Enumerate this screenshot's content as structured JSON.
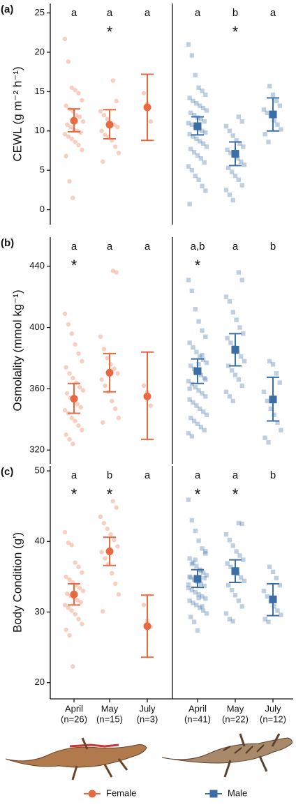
{
  "facets": [
    {
      "name": "Female",
      "color": "#e8693f",
      "marker": "circle",
      "categories": [
        "April",
        "May",
        "July"
      ],
      "sample_sizes": [
        "(n=26)",
        "(n=15)",
        "(n=3)"
      ]
    },
    {
      "name": "Male",
      "color": "#3a6ea5",
      "marker": "square",
      "categories": [
        "April",
        "May",
        "July"
      ],
      "sample_sizes": [
        "(n=41)",
        "(n=22)",
        "(n=12)"
      ]
    }
  ],
  "chart_data": [
    {
      "type": "dotplot",
      "tag": "(a)",
      "ylabel": "CEWL (g m⁻² h⁻¹)",
      "ylim": [
        -1.9,
        26.2
      ],
      "yticks": [
        0,
        5,
        10,
        15,
        20,
        25
      ],
      "series": [
        {
          "means": [
            11.3,
            10.8,
            13.0
          ],
          "lower": [
            9.9,
            9.0,
            8.8
          ],
          "upper": [
            12.8,
            12.7,
            17.2
          ],
          "letters": [
            "a",
            "a",
            "a"
          ],
          "stars": [
            null,
            "*",
            null
          ],
          "points": [
            [
              21.7,
              18.8,
              15.5,
              15.2,
              14.8,
              13.9,
              13.2,
              12.8,
              12.5,
              12.0,
              11.8,
              11.2,
              10.8,
              10.5,
              10.2,
              10.0,
              9.8,
              9.6,
              9.3,
              9.0,
              8.6,
              8.2,
              7.6,
              6.8,
              3.6,
              1.5
            ],
            [
              16.4,
              13.8,
              12.5,
              12.0,
              11.5,
              11.0,
              10.8,
              10.5,
              10.0,
              9.5,
              9.2,
              8.8,
              8.0,
              7.2,
              6.1
            ],
            [
              14.8,
              13.5,
              11.2
            ]
          ]
        },
        {
          "means": [
            10.6,
            7.1,
            12.1
          ],
          "lower": [
            9.5,
            5.6,
            10.0
          ],
          "upper": [
            11.8,
            8.6,
            14.2
          ],
          "letters": [
            "a",
            "b",
            "a"
          ],
          "stars": [
            null,
            "*",
            null
          ],
          "points": [
            [
              21,
              19.6,
              17.1,
              15.5,
              15.1,
              14.6,
              14.2,
              13.8,
              13.5,
              13.2,
              12.9,
              12.6,
              12.3,
              12.0,
              11.7,
              11.5,
              11.2,
              11.0,
              10.8,
              10.5,
              10.2,
              10.0,
              9.8,
              9.6,
              9.3,
              9.0,
              8.7,
              8.4,
              8.0,
              7.7,
              7.3,
              6.9,
              6.5,
              6.0,
              5.5,
              5.0,
              4.3,
              3.8,
              3.0,
              2.4,
              0.7
            ],
            [
              11.8,
              11.2,
              10.6,
              10.0,
              9.4,
              8.8,
              8.4,
              8.0,
              7.6,
              7.2,
              6.9,
              6.5,
              6.1,
              5.7,
              5.3,
              4.8,
              4.3,
              3.8,
              3.1,
              2.5,
              1.9,
              1.2
            ],
            [
              15.7,
              14.6,
              13.8,
              13.2,
              12.7,
              12.3,
              11.9,
              11.3,
              10.8,
              10.2,
              9.6,
              8.6
            ]
          ]
        }
      ]
    },
    {
      "type": "dotplot",
      "tag": "(b)",
      "ylabel": "Osmolality (mmol kg⁻¹)",
      "ylim": [
        311,
        459
      ],
      "yticks": [
        320,
        360,
        400,
        440
      ],
      "series": [
        {
          "means": [
            353.5,
            370.5,
            355
          ],
          "lower": [
            344,
            358,
            327
          ],
          "upper": [
            363.5,
            383,
            384
          ],
          "letters": [
            "a",
            "a",
            "a"
          ],
          "stars": [
            "*",
            null,
            null
          ],
          "points": [
            [
              409,
              402,
              396,
              389,
              383,
              378,
              374,
              370,
              367,
              364,
              361,
              359,
              357,
              354,
              352,
              350,
              348,
              346,
              344,
              341,
              339,
              336,
              333,
              330,
              327,
              324
            ],
            [
              437,
              436,
              394,
              386,
              380,
              376,
              373,
              370,
              366,
              362,
              358,
              352,
              347,
              341,
              338
            ],
            [
              362,
              358,
              349
            ]
          ]
        },
        {
          "means": [
            371.5,
            385.5,
            353
          ],
          "lower": [
            363.5,
            375,
            339
          ],
          "upper": [
            379.5,
            396,
            367.5
          ],
          "letters": [
            "a,b",
            "a",
            "b"
          ],
          "stars": [
            "*",
            null,
            null
          ],
          "points": [
            [
              431,
              424,
              412,
              404,
              398,
              394,
              390,
              387,
              384,
              381,
              379,
              377,
              375,
              373,
              371,
              369,
              367,
              365,
              363,
              361,
              359,
              357,
              355,
              353,
              351,
              349,
              347,
              345,
              343,
              341,
              339,
              337,
              335,
              333,
              331,
              329,
              371,
              376,
              382,
              366,
              360
            ],
            [
              436,
              431,
              420,
              417,
              410,
              405,
              400,
              396,
              393,
              390,
              387,
              384,
              381,
              378,
              375,
              372,
              369,
              366,
              362,
              358,
              355,
              352
            ],
            [
              378,
              376,
              370,
              364,
              358,
              352,
              347,
              343,
              338,
              333,
              328,
              325
            ]
          ]
        }
      ]
    },
    {
      "type": "dotplot",
      "tag": "(c)",
      "ylabel": "Body Condition (g')",
      "ylim": [
        17.7,
        50.7
      ],
      "yticks": [
        20,
        30,
        40,
        50
      ],
      "series": [
        {
          "means": [
            32.5,
            38.6,
            28
          ],
          "lower": [
            31,
            36.6,
            23.6
          ],
          "upper": [
            34,
            40.6,
            32.4
          ],
          "letters": [
            "a",
            "b",
            "a"
          ],
          "stars": [
            "*",
            "*",
            null
          ],
          "points": [
            [
              41.3,
              39.8,
              39.5,
              37.0,
              36.4,
              35.6,
              35.0,
              34.6,
              34.2,
              33.8,
              33.4,
              33.0,
              32.6,
              32.3,
              32.0,
              31.7,
              31.4,
              31.0,
              30.6,
              30.2,
              29.7,
              29.0,
              28.3,
              27.5,
              26.7,
              22.3
            ],
            [
              45.7,
              44.8,
              43.5,
              42.6,
              41.8,
              41.0,
              40.2,
              39.3,
              38.5,
              37.6,
              36.8,
              35.5,
              34.0,
              32.5,
              30.1
            ],
            [
              31.0,
              28.8,
              27.9
            ]
          ]
        },
        {
          "means": [
            34.7,
            35.8,
            31.8
          ],
          "lower": [
            33.5,
            34.2,
            29.5
          ],
          "upper": [
            36,
            37.4,
            34
          ],
          "letters": [
            "a",
            "a",
            "b"
          ],
          "stars": [
            "*",
            "*",
            null
          ],
          "points": [
            [
              45.9,
              43.0,
              41.5,
              40.1,
              39.0,
              38.3,
              37.6,
              37.0,
              36.5,
              36.0,
              35.6,
              35.2,
              34.9,
              34.6,
              34.3,
              34.0,
              33.7,
              33.4,
              33.1,
              32.8,
              32.5,
              32.2,
              31.9,
              31.6,
              31.3,
              31.0,
              30.6,
              30.2,
              29.8,
              29.3,
              28.6,
              27.4,
              35.8,
              34.8,
              33.9,
              36.8,
              37.4,
              32.0,
              30.8,
              38.6,
              35.0
            ],
            [
              42.6,
              42.5,
              41.0,
              40.2,
              39.4,
              38.6,
              38.0,
              37.4,
              36.9,
              36.4,
              35.9,
              35.4,
              34.9,
              34.4,
              33.8,
              33.1,
              32.4,
              31.6,
              30.8,
              29.8,
              29.0,
              28.7
            ],
            [
              36.4,
              35.7,
              34.8,
              33.8,
              33.0,
              32.2,
              31.5,
              30.8,
              30.2,
              29.6,
              29.0,
              28.6
            ]
          ]
        }
      ]
    }
  ]
}
